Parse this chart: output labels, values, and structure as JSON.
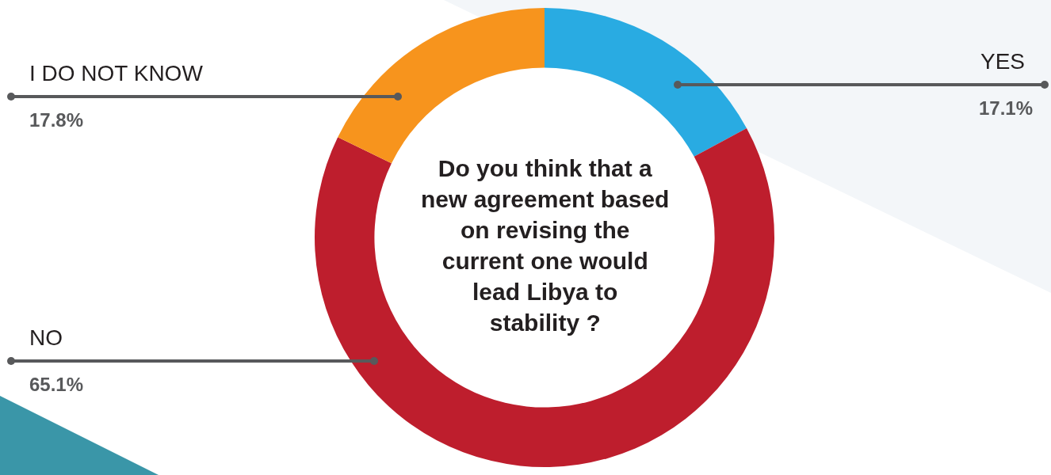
{
  "chart_data": {
    "type": "donut",
    "title": "Do you think that a new agreement based on revising the current one would lead Libya to stability ?",
    "categories": [
      "YES",
      "NO",
      "I DO NOT KNOW"
    ],
    "values": [
      17.1,
      65.1,
      17.8
    ],
    "colors": [
      "#29abe2",
      "#be1e2d",
      "#f7941d"
    ],
    "value_labels": [
      "17.1%",
      "65.1%",
      "17.8%"
    ],
    "legend": false
  }
}
